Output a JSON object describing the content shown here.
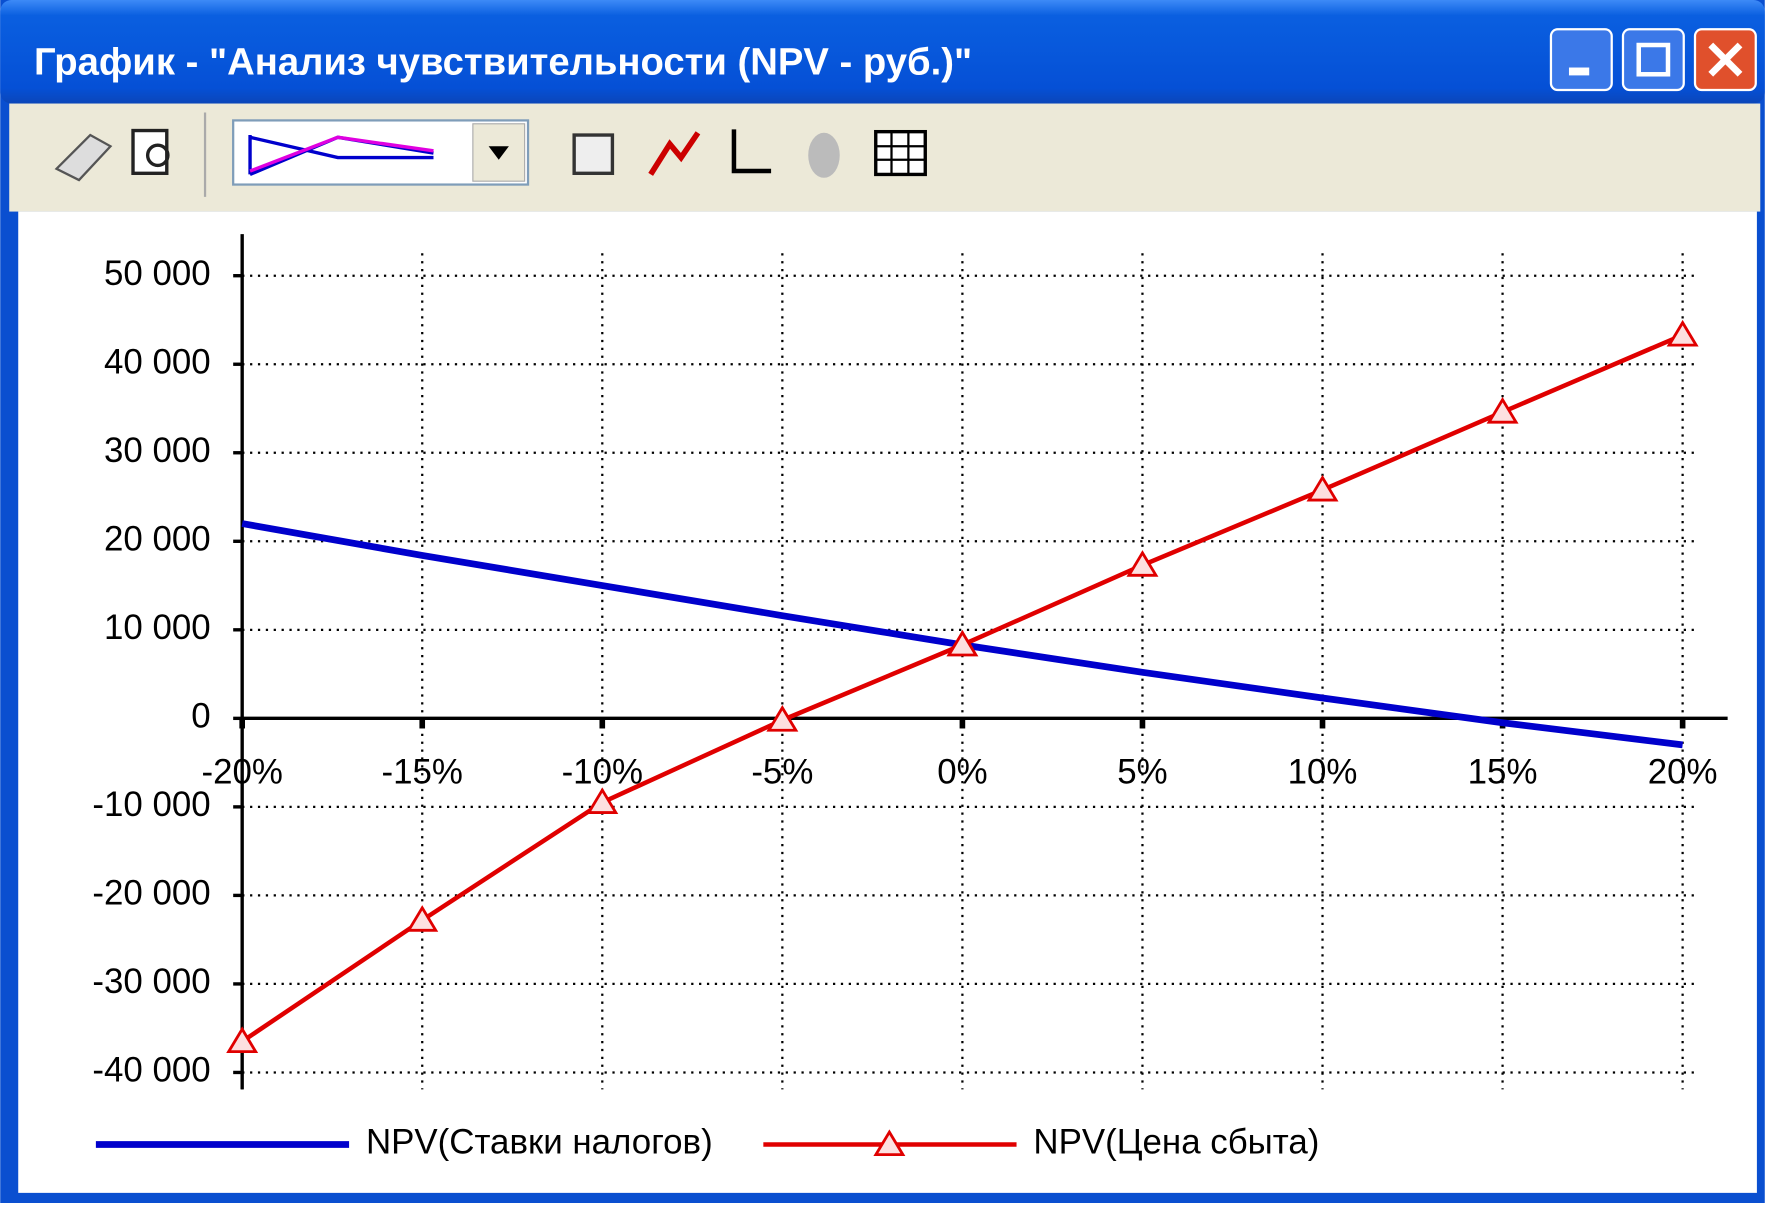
{
  "chart_data": {
    "type": "line",
    "title": "График - \"Анализ чувствительности (NPV - руб.)\"",
    "categories": [
      "-20%",
      "-15%",
      "-10%",
      "-5%",
      "0%",
      "5%",
      "10%",
      "15%",
      "20%"
    ],
    "series": [
      {
        "name": "NPV(Ставки налогов)",
        "color": "#0000cc",
        "values": [
          22000,
          18400,
          15000,
          11600,
          8300,
          5200,
          2300,
          -500,
          -3000
        ]
      },
      {
        "name": "NPV(Цена сбыта)",
        "color": "#e00000",
        "marker": "triangle",
        "values": [
          -36500,
          -22800,
          -9500,
          -200,
          8300,
          17300,
          25800,
          34600,
          43300
        ]
      }
    ],
    "ylim": [
      -40000,
      50000
    ],
    "yticks": [
      {
        "value": -40000,
        "label": "-40 000"
      },
      {
        "value": -30000,
        "label": "-30 000"
      },
      {
        "value": -20000,
        "label": "-20 000"
      },
      {
        "value": -10000,
        "label": "-10 000"
      },
      0,
      {
        "value": 10000,
        "label": "10 000"
      },
      {
        "value": 20000,
        "label": "20 000"
      },
      {
        "value": 30000,
        "label": "30 000"
      },
      {
        "value": 40000,
        "label": "40 000"
      },
      {
        "value": 50000,
        "label": "50 000"
      }
    ],
    "grid": true,
    "legend": "bottom"
  }
}
